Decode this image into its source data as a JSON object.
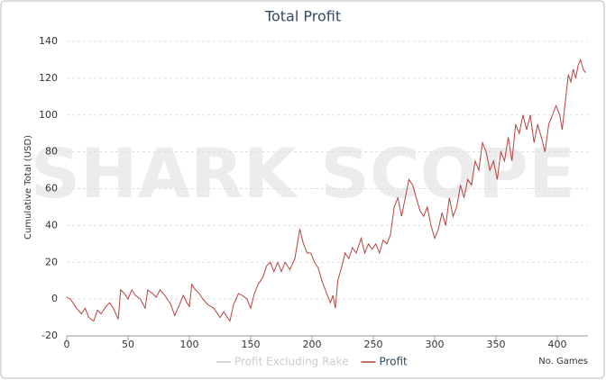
{
  "chart_data": {
    "type": "line",
    "title": "Total Profit",
    "watermark": "SHARK SCOPE",
    "y_label": "Cumulative Total (USD)",
    "x_label": "No. Games",
    "xlim": [
      0,
      425
    ],
    "xticks": [
      0,
      50,
      100,
      150,
      200,
      250,
      300,
      350,
      400
    ],
    "ylim": [
      -20,
      140
    ],
    "yticks": [
      -20,
      0,
      20,
      40,
      60,
      80,
      100,
      120,
      140
    ],
    "grid": true,
    "x": [
      0,
      3,
      8,
      12,
      15,
      18,
      22,
      25,
      28,
      32,
      35,
      38,
      40,
      42,
      44,
      47,
      50,
      53,
      56,
      60,
      64,
      66,
      70,
      73,
      76,
      80,
      85,
      88,
      92,
      95,
      98,
      100,
      102,
      105,
      108,
      111,
      115,
      120,
      125,
      128,
      130,
      133,
      136,
      140,
      143,
      147,
      150,
      153,
      156,
      160,
      163,
      166,
      169,
      172,
      175,
      178,
      182,
      186,
      190,
      193,
      196,
      199,
      202,
      205,
      208,
      212,
      215,
      217,
      219,
      221,
      224,
      227,
      230,
      233,
      236,
      240,
      243,
      246,
      249,
      252,
      255,
      258,
      261,
      264,
      267,
      270,
      273,
      276,
      279,
      282,
      285,
      288,
      291,
      294,
      297,
      300,
      303,
      306,
      309,
      312,
      315,
      318,
      321,
      324,
      327,
      330,
      333,
      336,
      339,
      342,
      345,
      348,
      351,
      354,
      357,
      360,
      363,
      366,
      369,
      372,
      375,
      378,
      381,
      384,
      387,
      390,
      393,
      396,
      399,
      402,
      404,
      407,
      409,
      411,
      413,
      415,
      417,
      419,
      421,
      423
    ],
    "series": [
      {
        "name": "Profit Excluding Rake",
        "color": "#cccccc",
        "visible": false
      },
      {
        "name": "Profit",
        "color": "#b5433f",
        "visible": true,
        "values": [
          1,
          0,
          -5,
          -8,
          -5,
          -10,
          -12,
          -6,
          -8,
          -4,
          -2,
          -5,
          -8,
          -11,
          5,
          3,
          0,
          5,
          2,
          0,
          -5,
          5,
          3,
          1,
          5,
          2,
          -3,
          -9,
          -3,
          2,
          -2,
          -4,
          8,
          5,
          3,
          0,
          -3,
          -5,
          -10,
          -7,
          -9,
          -12,
          -3,
          3,
          2,
          0,
          -5,
          3,
          8,
          12,
          18,
          20,
          15,
          20,
          15,
          20,
          16,
          22,
          38,
          30,
          25,
          25,
          20,
          17,
          10,
          3,
          -2,
          2,
          -5,
          10,
          17,
          25,
          22,
          28,
          25,
          33,
          25,
          30,
          27,
          30,
          25,
          32,
          30,
          35,
          50,
          55,
          45,
          55,
          65,
          62,
          55,
          48,
          45,
          50,
          40,
          33,
          38,
          47,
          40,
          55,
          45,
          50,
          62,
          55,
          65,
          62,
          75,
          70,
          85,
          80,
          70,
          75,
          65,
          80,
          75,
          88,
          75,
          95,
          90,
          100,
          92,
          100,
          85,
          95,
          88,
          80,
          95,
          100,
          105,
          100,
          92,
          110,
          122,
          118,
          125,
          120,
          127,
          130,
          125,
          123
        ]
      }
    ]
  }
}
